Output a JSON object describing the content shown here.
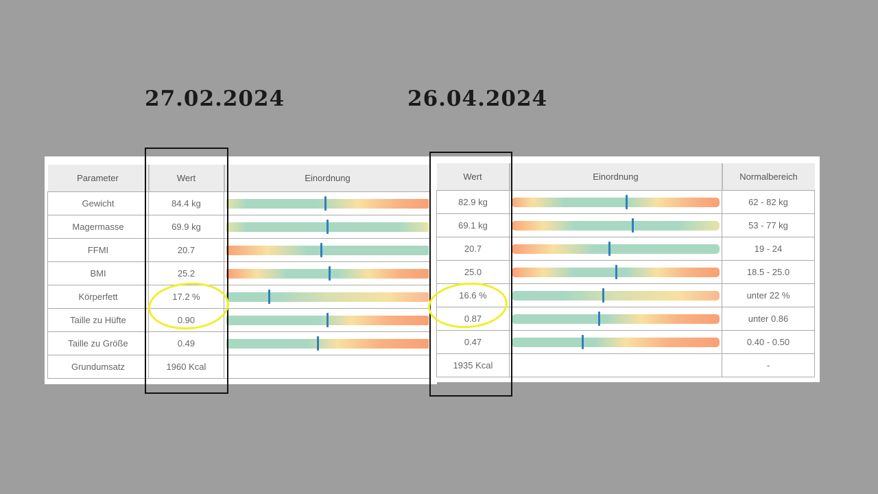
{
  "dates": {
    "left": "27.02.2024",
    "right": "26.04.2024"
  },
  "headers": {
    "parameter": "Parameter",
    "wert": "Wert",
    "einordnung": "Einordnung",
    "normalbereich": "Normalbereich"
  },
  "colors": {
    "marker": "#2f7fbf",
    "good": "#a8d8c2",
    "warn": "#f8e0a0",
    "bad": "#f9a074",
    "highlight": "#f2ee2a"
  },
  "left": {
    "rows": [
      {
        "parameter": "Gewicht",
        "wert": "84.4 kg",
        "position": 0.49,
        "gradient": "g-gew-l"
      },
      {
        "parameter": "Magermasse",
        "wert": "69.9 kg",
        "position": 0.5,
        "gradient": "g-mag-l"
      },
      {
        "parameter": "FFMI",
        "wert": "20.7",
        "position": 0.47,
        "gradient": "g-ffmi"
      },
      {
        "parameter": "BMI",
        "wert": "25.2",
        "position": 0.51,
        "gradient": "g-bmi"
      },
      {
        "parameter": "Körperfett",
        "wert": "17.2 %",
        "position": 0.21,
        "gradient": "g-kf"
      },
      {
        "parameter": "Taille zu Hüfte",
        "wert": "0.90",
        "position": 0.5,
        "gradient": "g-th"
      },
      {
        "parameter": "Taille zu Größe",
        "wert": "0.49",
        "position": 0.45,
        "gradient": "g-tg"
      },
      {
        "parameter": "Grundumsatz",
        "wert": "1960 Kcal",
        "position": null,
        "gradient": ""
      }
    ]
  },
  "right": {
    "rows": [
      {
        "wert": "82.9 kg",
        "position": 0.55,
        "gradient": "g-gew-r",
        "normal": "62 - 82 kg"
      },
      {
        "wert": "69.1 kg",
        "position": 0.58,
        "gradient": "g-mag-r",
        "normal": "53 - 77 kg"
      },
      {
        "wert": "20.7",
        "position": 0.47,
        "gradient": "g-ffmi",
        "normal": "19 - 24"
      },
      {
        "wert": "25.0",
        "position": 0.5,
        "gradient": "g-bmi",
        "normal": "18.5 - 25.0"
      },
      {
        "wert": "16.6 %",
        "position": 0.44,
        "gradient": "g-kf",
        "normal": "unter 22 %"
      },
      {
        "wert": "0.87",
        "position": 0.42,
        "gradient": "g-th",
        "normal": "unter 0.86"
      },
      {
        "wert": "0.47",
        "position": 0.34,
        "gradient": "g-tg",
        "normal": "0.40 - 0.50"
      },
      {
        "wert": "1935 Kcal",
        "position": null,
        "gradient": "",
        "normal": "-"
      }
    ]
  }
}
